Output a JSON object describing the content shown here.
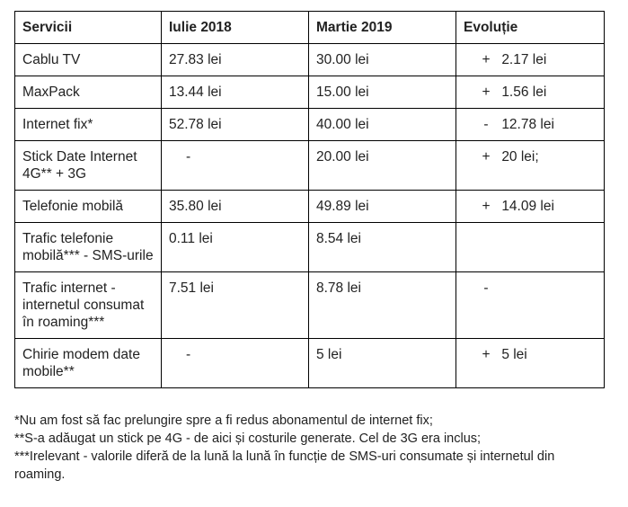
{
  "table": {
    "headers": [
      "Servicii",
      "Iulie 2018",
      "Martie 2019",
      "Evoluție"
    ],
    "rows": [
      {
        "service": "Cablu TV",
        "jul2018": "27.83 lei",
        "mar2019": "30.00 lei",
        "evo_sign": "+",
        "evo_value": "2.17 lei"
      },
      {
        "service": "MaxPack",
        "jul2018": "13.44 lei",
        "mar2019": "15.00 lei",
        "evo_sign": "+",
        "evo_value": "1.56 lei"
      },
      {
        "service": "Internet fix*",
        "jul2018": "52.78 lei",
        "mar2019": "40.00 lei",
        "evo_sign": "-",
        "evo_value": "12.78 lei"
      },
      {
        "service": "Stick Date Internet 4G** + 3G",
        "jul2018": "-",
        "mar2019": "20.00 lei",
        "evo_sign": "+",
        "evo_value": "20 lei;"
      },
      {
        "service": "Telefonie mobilă",
        "jul2018": "35.80 lei",
        "mar2019": "49.89 lei",
        "evo_sign": "+",
        "evo_value": "14.09 lei"
      },
      {
        "service": "Trafic telefonie mobilă*** - SMS-urile",
        "jul2018": "0.11 lei",
        "mar2019": "8.54 lei",
        "evo_sign": "",
        "evo_value": ""
      },
      {
        "service": "Trafic internet - internetul consumat în roaming***",
        "jul2018": "7.51 lei",
        "mar2019": "8.78 lei",
        "evo_sign": "-",
        "evo_value": ""
      },
      {
        "service": "Chirie modem date mobile**",
        "jul2018": "-",
        "mar2019": "5 lei",
        "evo_sign": "+",
        "evo_value": "5 lei"
      }
    ]
  },
  "footnotes": [
    "*Nu am fost să fac prelungire spre a fi redus abonamentul de internet fix;",
    "**S-a adăugat un stick pe 4G - de aici și costurile generate. Cel de 3G era inclus;",
    "***Irelevant - valorile diferă de la lună la lună în funcție de SMS-uri consumate și internetul din roaming."
  ]
}
